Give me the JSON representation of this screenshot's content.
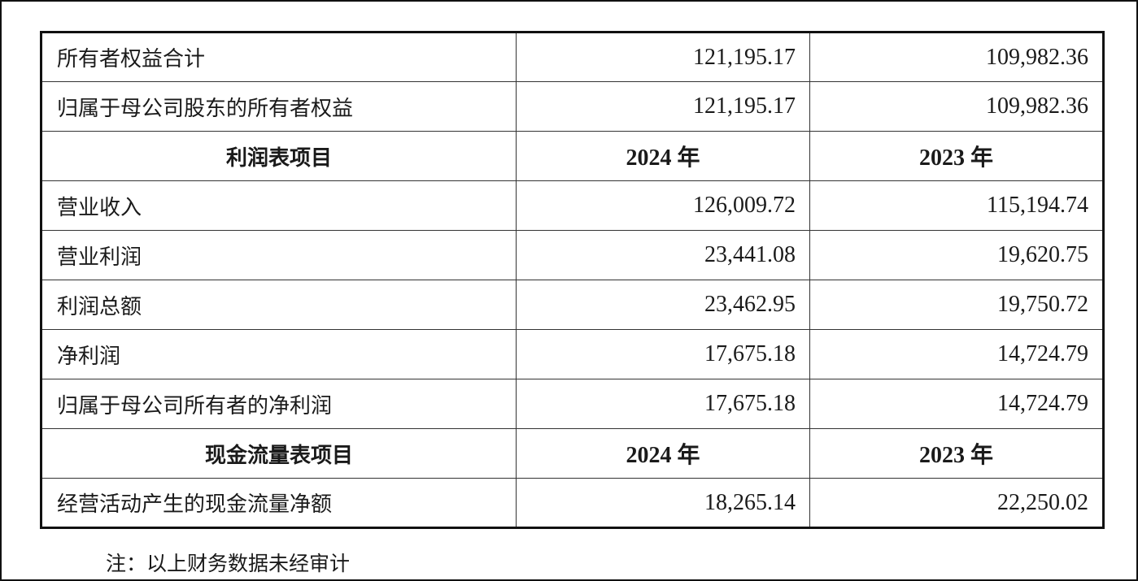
{
  "rows": [
    {
      "type": "data",
      "label": "所有者权益合计",
      "v2024": "121,195.17",
      "v2023": "109,982.36"
    },
    {
      "type": "data",
      "label": "归属于母公司股东的所有者权益",
      "v2024": "121,195.17",
      "v2023": "109,982.36"
    },
    {
      "type": "header",
      "label": "利润表项目",
      "v2024": "2024 年",
      "v2023": "2023 年"
    },
    {
      "type": "data",
      "label": "营业收入",
      "v2024": "126,009.72",
      "v2023": "115,194.74"
    },
    {
      "type": "data",
      "label": "营业利润",
      "v2024": "23,441.08",
      "v2023": "19,620.75"
    },
    {
      "type": "data",
      "label": "利润总额",
      "v2024": "23,462.95",
      "v2023": "19,750.72"
    },
    {
      "type": "data",
      "label": "净利润",
      "v2024": "17,675.18",
      "v2023": "14,724.79"
    },
    {
      "type": "data",
      "label": "归属于母公司所有者的净利润",
      "v2024": "17,675.18",
      "v2023": "14,724.79"
    },
    {
      "type": "header",
      "label": "现金流量表项目",
      "v2024": "2024 年",
      "v2023": "2023 年"
    },
    {
      "type": "data",
      "label": "经营活动产生的现金流量净额",
      "v2024": "18,265.14",
      "v2023": "22,250.02"
    }
  ],
  "note": "注：以上财务数据未经审计"
}
